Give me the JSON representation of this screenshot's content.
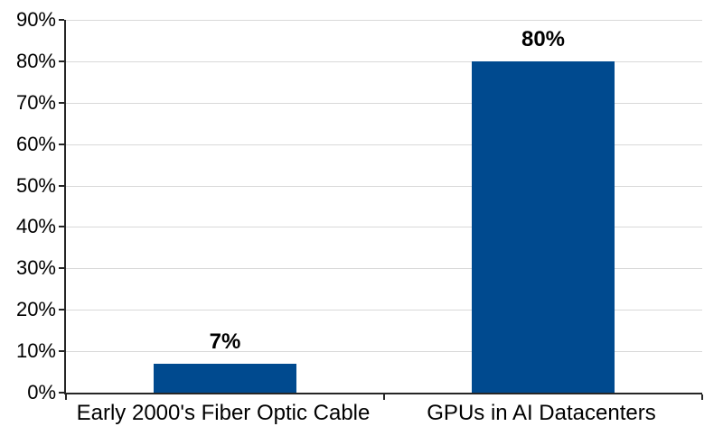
{
  "chart_data": {
    "type": "bar",
    "title": "",
    "xlabel": "",
    "ylabel": "",
    "categories": [
      "Early 2000's Fiber Optic Cable",
      "GPUs in AI Datacenters"
    ],
    "values": [
      7,
      80
    ],
    "data_labels": [
      "7%",
      "80%"
    ],
    "y_ticks": [
      "0%",
      "10%",
      "20%",
      "30%",
      "40%",
      "50%",
      "60%",
      "70%",
      "80%",
      "90%"
    ],
    "ylim": [
      0,
      90
    ],
    "y_tick_step": 10,
    "grid": "horizontal",
    "legend": "none",
    "colors": {
      "bar_fill": "#004a8f",
      "gridline": "#d9d9d9",
      "axis_line": "#262626",
      "label_text": "#000000",
      "background": "#ffffff"
    }
  }
}
